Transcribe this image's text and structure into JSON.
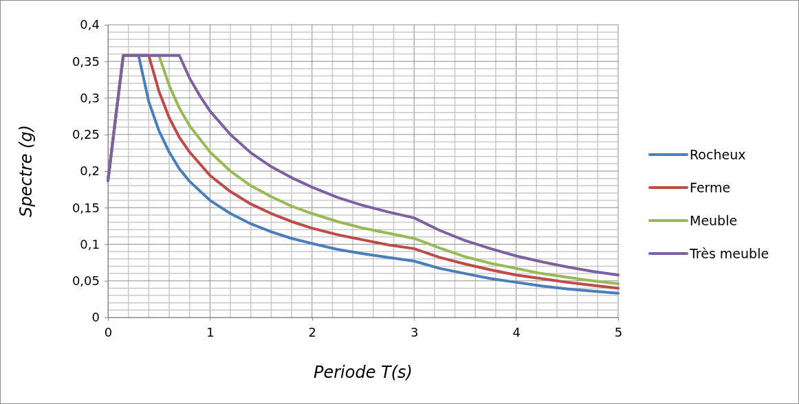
{
  "chart_data": {
    "type": "line",
    "xlabel": "Periode T(s)",
    "ylabel": "Spectre (g)",
    "xlim": [
      0,
      5
    ],
    "ylim": [
      0,
      0.4
    ],
    "xticks": [
      0,
      1,
      2,
      3,
      4,
      5
    ],
    "yticks": [
      {
        "value": 0,
        "label": "0"
      },
      {
        "value": 0.05,
        "label": "0,05"
      },
      {
        "value": 0.1,
        "label": "0,1"
      },
      {
        "value": 0.15,
        "label": "0,15"
      },
      {
        "value": 0.2,
        "label": "0,2"
      },
      {
        "value": 0.25,
        "label": "0,25"
      },
      {
        "value": 0.3,
        "label": "0,3"
      },
      {
        "value": 0.35,
        "label": "0,35"
      },
      {
        "value": 0.4,
        "label": "0,4"
      }
    ],
    "grid": true,
    "legend": "right",
    "marker": "none",
    "line_style": "solid",
    "series": [
      {
        "name": "Rocheux",
        "color": "#4a7ebb",
        "x": [
          0,
          0.15,
          0.3,
          0.4,
          0.5,
          0.6,
          0.7,
          0.8,
          1,
          1.2,
          1.4,
          1.6,
          1.8,
          2,
          2.25,
          2.5,
          2.75,
          3,
          3.25,
          3.5,
          3.75,
          4,
          4.25,
          4.5,
          4.75,
          5
        ],
        "values": [
          0.187,
          0.358,
          0.358,
          0.295,
          0.255,
          0.226,
          0.203,
          0.186,
          0.16,
          0.142,
          0.128,
          0.117,
          0.108,
          0.101,
          0.093,
          0.087,
          0.082,
          0.077,
          0.067,
          0.06,
          0.053,
          0.048,
          0.043,
          0.039,
          0.036,
          0.033
        ]
      },
      {
        "name": "Ferme",
        "color": "#be4b48",
        "x": [
          0,
          0.15,
          0.4,
          0.5,
          0.6,
          0.7,
          0.8,
          1,
          1.2,
          1.4,
          1.6,
          1.8,
          2,
          2.25,
          2.5,
          2.75,
          3,
          3.25,
          3.5,
          3.75,
          4,
          4.25,
          4.5,
          4.75,
          5
        ],
        "values": [
          0.187,
          0.358,
          0.358,
          0.309,
          0.273,
          0.246,
          0.226,
          0.194,
          0.172,
          0.155,
          0.142,
          0.131,
          0.122,
          0.113,
          0.106,
          0.099,
          0.094,
          0.082,
          0.073,
          0.065,
          0.058,
          0.053,
          0.048,
          0.044,
          0.04
        ]
      },
      {
        "name": "Meuble",
        "color": "#98b954",
        "x": [
          0,
          0.15,
          0.5,
          0.6,
          0.7,
          0.8,
          1,
          1.2,
          1.4,
          1.6,
          1.8,
          2,
          2.25,
          2.5,
          2.75,
          3,
          3.25,
          3.5,
          3.75,
          4,
          4.25,
          4.5,
          4.75,
          5
        ],
        "values": [
          0.187,
          0.358,
          0.358,
          0.317,
          0.286,
          0.262,
          0.226,
          0.2,
          0.18,
          0.165,
          0.152,
          0.142,
          0.131,
          0.122,
          0.115,
          0.108,
          0.095,
          0.083,
          0.074,
          0.067,
          0.06,
          0.055,
          0.05,
          0.046
        ]
      },
      {
        "name": "Très meuble",
        "color": "#7d60a0",
        "x": [
          0,
          0.15,
          0.7,
          0.8,
          0.9,
          1,
          1.2,
          1.4,
          1.6,
          1.8,
          2,
          2.25,
          2.5,
          2.75,
          3,
          3.25,
          3.5,
          3.75,
          4,
          4.25,
          4.5,
          4.75,
          5
        ],
        "values": [
          0.187,
          0.358,
          0.358,
          0.327,
          0.303,
          0.282,
          0.25,
          0.225,
          0.206,
          0.191,
          0.178,
          0.164,
          0.153,
          0.144,
          0.136,
          0.119,
          0.105,
          0.094,
          0.084,
          0.076,
          0.069,
          0.063,
          0.058
        ]
      }
    ]
  }
}
